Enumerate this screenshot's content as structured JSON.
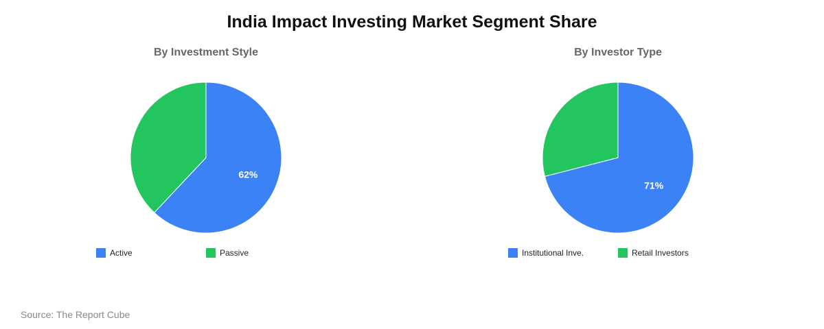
{
  "title": "India Impact Investing Market Segment Share",
  "source": "Source: The Report Cube",
  "colors": {
    "blue": "#3b82f6",
    "green": "#22c55e"
  },
  "chart_data": [
    {
      "type": "pie",
      "title": "By Investment Style",
      "slices": [
        {
          "label": "Active",
          "value": 62,
          "display": "62%",
          "color": "#3b82f6"
        },
        {
          "label": "Passive",
          "value": 38,
          "display": "",
          "color": "#22c55e"
        }
      ],
      "legend": "bottom"
    },
    {
      "type": "pie",
      "title": "By Investor Type",
      "slices": [
        {
          "label": "Institutional Inve.",
          "value": 71,
          "display": "71%",
          "color": "#3b82f6"
        },
        {
          "label": "Retail Investors",
          "value": 29,
          "display": "",
          "color": "#22c55e"
        }
      ],
      "legend": "bottom"
    }
  ]
}
